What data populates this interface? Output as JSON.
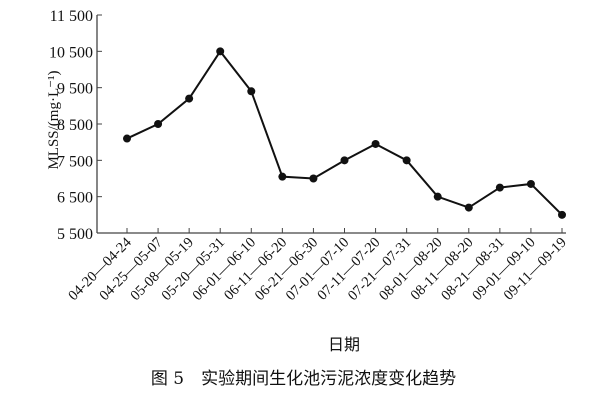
{
  "chart_data": {
    "type": "line",
    "ylabel": "MLSS/(mg·L⁻¹)",
    "xlabel": "日期",
    "caption": "图 5　实验期间生化池污泥浓度变化趋势",
    "ylim": [
      5500,
      11500
    ],
    "yticks": [
      5500,
      6500,
      7500,
      8500,
      9500,
      10500,
      11500
    ],
    "ytick_labels": [
      "5 500",
      "6 500",
      "7 500",
      "8 500",
      "9 500",
      "10 500",
      "11 500"
    ],
    "grid": false,
    "categories": [
      "04-20—04-24",
      "04-25—05-07",
      "05-08—05-19",
      "05-20—05-31",
      "06-01—06-10",
      "06-11—06-20",
      "06-21—06-30",
      "07-01—07-10",
      "07-11—07-20",
      "07-21—07-31",
      "08-01—08-20",
      "08-11—08-20",
      "08-21—08-31",
      "09-01—09-10",
      "09-11—09-19"
    ],
    "values": [
      8100,
      8500,
      9200,
      10500,
      9400,
      7050,
      7000,
      7500,
      7950,
      7500,
      6500,
      6200,
      6750,
      6850,
      6000
    ],
    "color": "#111111"
  }
}
